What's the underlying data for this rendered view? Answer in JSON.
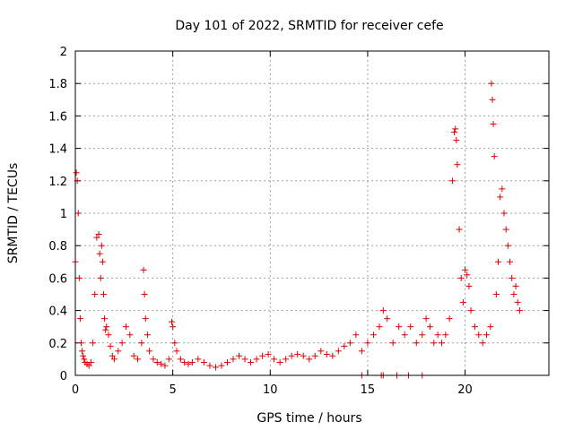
{
  "chart_data": {
    "type": "scatter",
    "title": "Day 101 of 2022, SRMTID for receiver cefe",
    "xlabel": "GPS time / hours",
    "ylabel": "SRMTID / TECUs",
    "xlim": [
      0,
      24.3
    ],
    "ylim": [
      0,
      2
    ],
    "x_ticks": [
      0,
      5,
      10,
      15,
      20
    ],
    "x_tick_labels": [
      "0",
      "5",
      "10",
      "15",
      "20"
    ],
    "y_ticks": [
      0,
      0.2,
      0.4,
      0.6,
      0.8,
      1,
      1.2,
      1.4,
      1.6,
      1.8,
      2
    ],
    "y_tick_labels": [
      "0",
      "0.2",
      "0.4",
      "0.6",
      "0.8",
      "1",
      "1.2",
      "1.4",
      "1.6",
      "1.8",
      "2"
    ],
    "grid": true,
    "marker": "+",
    "color": "#e00000",
    "series": [
      {
        "name": "SRMTID",
        "x": [
          0.0,
          0.05,
          0.1,
          0.15,
          0.2,
          0.25,
          0.3,
          0.35,
          0.4,
          0.45,
          0.5,
          0.6,
          0.7,
          0.8,
          0.9,
          1.0,
          1.1,
          1.2,
          1.25,
          1.3,
          1.35,
          1.4,
          1.45,
          1.5,
          1.55,
          1.6,
          1.7,
          1.8,
          1.9,
          2.0,
          2.2,
          2.4,
          2.6,
          2.8,
          3.0,
          3.2,
          3.4,
          3.5,
          3.55,
          3.6,
          3.7,
          3.8,
          4.0,
          4.2,
          4.4,
          4.6,
          4.8,
          4.95,
          5.0,
          5.1,
          5.2,
          5.4,
          5.6,
          5.8,
          6.0,
          6.3,
          6.6,
          6.9,
          7.2,
          7.5,
          7.8,
          8.1,
          8.4,
          8.7,
          9.0,
          9.3,
          9.6,
          9.9,
          10.2,
          10.5,
          10.8,
          11.1,
          11.4,
          11.7,
          12.0,
          12.3,
          12.6,
          12.9,
          13.2,
          13.5,
          13.8,
          14.1,
          14.4,
          14.7,
          15.0,
          15.3,
          15.6,
          15.8,
          16.0,
          16.3,
          16.6,
          16.9,
          17.2,
          17.5,
          17.8,
          18.0,
          18.2,
          18.4,
          18.6,
          18.8,
          19.0,
          19.2,
          19.35,
          19.45,
          19.5,
          19.55,
          19.6,
          19.7,
          19.8,
          19.9,
          20.0,
          20.1,
          20.2,
          20.3,
          20.5,
          20.7,
          20.9,
          21.1,
          21.3,
          21.35,
          21.4,
          21.45,
          21.5,
          21.6,
          21.7,
          21.8,
          21.9,
          22.0,
          22.1,
          22.2,
          22.3,
          22.4,
          22.5,
          22.6,
          22.7,
          22.8
        ],
        "y": [
          0.7,
          1.25,
          1.2,
          1.0,
          0.6,
          0.35,
          0.2,
          0.15,
          0.12,
          0.1,
          0.08,
          0.07,
          0.06,
          0.08,
          0.2,
          0.5,
          0.85,
          0.87,
          0.75,
          0.6,
          0.8,
          0.7,
          0.5,
          0.35,
          0.28,
          0.3,
          0.25,
          0.18,
          0.12,
          0.1,
          0.15,
          0.2,
          0.3,
          0.25,
          0.12,
          0.1,
          0.2,
          0.65,
          0.5,
          0.35,
          0.25,
          0.15,
          0.1,
          0.08,
          0.07,
          0.06,
          0.1,
          0.33,
          0.3,
          0.2,
          0.15,
          0.1,
          0.08,
          0.07,
          0.08,
          0.1,
          0.08,
          0.06,
          0.05,
          0.06,
          0.08,
          0.1,
          0.12,
          0.1,
          0.08,
          0.1,
          0.12,
          0.13,
          0.1,
          0.08,
          0.1,
          0.12,
          0.13,
          0.12,
          0.1,
          0.12,
          0.15,
          0.13,
          0.12,
          0.15,
          0.18,
          0.2,
          0.25,
          0.15,
          0.2,
          0.25,
          0.3,
          0.4,
          0.35,
          0.2,
          0.3,
          0.25,
          0.3,
          0.2,
          0.25,
          0.35,
          0.3,
          0.2,
          0.25,
          0.2,
          0.25,
          0.35,
          1.2,
          1.5,
          1.52,
          1.45,
          1.3,
          0.9,
          0.6,
          0.45,
          0.65,
          0.62,
          0.55,
          0.4,
          0.3,
          0.25,
          0.2,
          0.25,
          0.3,
          1.8,
          1.7,
          1.55,
          1.35,
          0.5,
          0.7,
          1.1,
          1.15,
          1.0,
          0.9,
          0.8,
          0.7,
          0.6,
          0.5,
          0.55,
          0.45,
          0.4
        ],
        "zero_x": [
          14.7,
          15.7,
          15.8,
          16.5,
          17.1,
          17.8
        ]
      }
    ]
  }
}
